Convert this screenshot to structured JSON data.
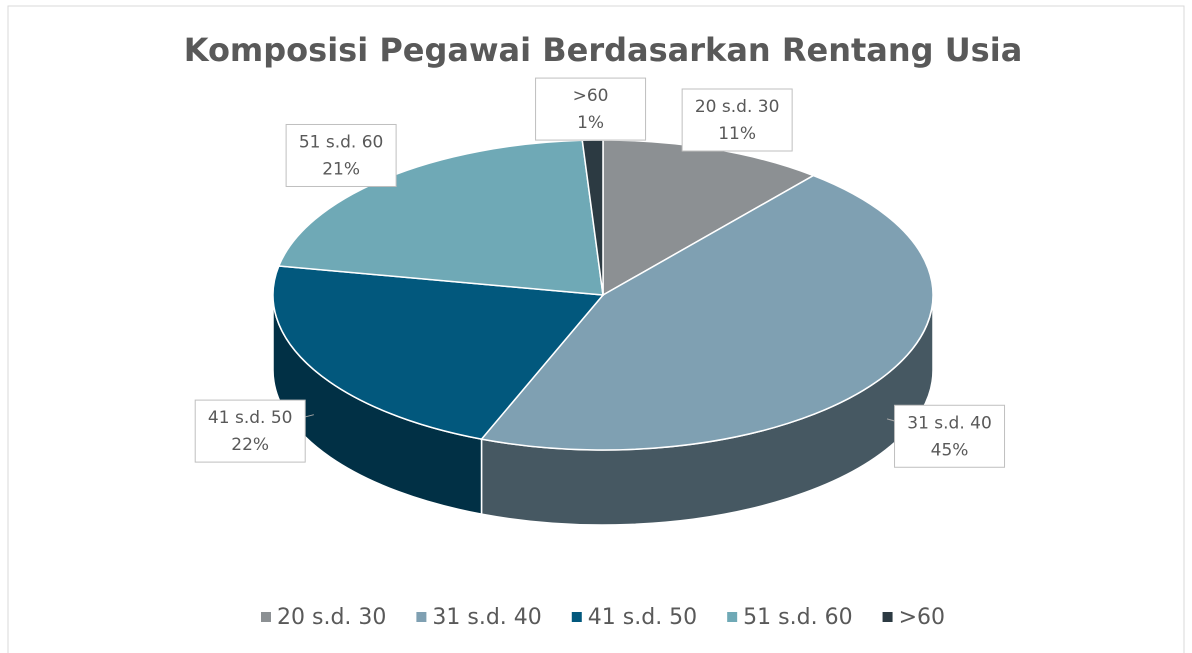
{
  "chart_data": {
    "type": "pie",
    "title": "Komposisi Pegawai Berdasarkan Rentang Usia",
    "categories": [
      "20 s.d. 30",
      "31 s.d. 40",
      "41 s.d. 50",
      "51 s.d. 60",
      ">60"
    ],
    "values": [
      11,
      45,
      22,
      21,
      1
    ],
    "value_labels": [
      "11%",
      "45%",
      "22%",
      "21%",
      "1%"
    ],
    "colors": [
      "#8c9093",
      "#7fa0b2",
      "#02587d",
      "#6fa9b6",
      "#2c3a42"
    ],
    "legend": "bottom"
  }
}
